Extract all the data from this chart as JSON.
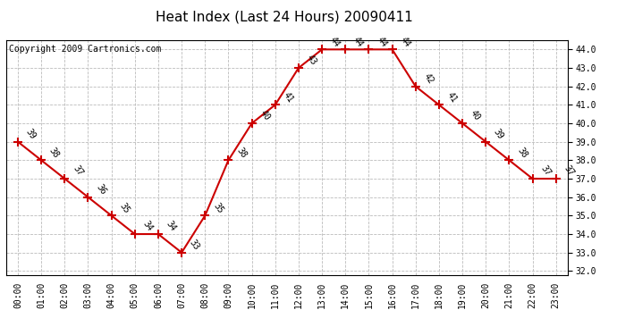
{
  "title": "Heat Index (Last 24 Hours) 20090411",
  "copyright": "Copyright 2009 Cartronics.com",
  "hours": [
    "00:00",
    "01:00",
    "02:00",
    "03:00",
    "04:00",
    "05:00",
    "06:00",
    "07:00",
    "08:00",
    "09:00",
    "10:00",
    "11:00",
    "12:00",
    "13:00",
    "14:00",
    "15:00",
    "16:00",
    "17:00",
    "18:00",
    "19:00",
    "20:00",
    "21:00",
    "22:00",
    "23:00"
  ],
  "values": [
    39,
    38,
    37,
    36,
    35,
    34,
    34,
    33,
    35,
    38,
    40,
    41,
    43,
    44,
    44,
    44,
    44,
    42,
    41,
    40,
    39,
    38,
    37,
    37
  ],
  "yticks": [
    32.0,
    33.0,
    34.0,
    35.0,
    36.0,
    37.0,
    38.0,
    39.0,
    40.0,
    41.0,
    42.0,
    43.0,
    44.0
  ],
  "line_color": "#cc0000",
  "background_color": "#ffffff",
  "grid_color": "#bbbbbb",
  "title_fontsize": 11,
  "tick_fontsize": 7,
  "annotation_fontsize": 7,
  "copyright_fontsize": 7
}
